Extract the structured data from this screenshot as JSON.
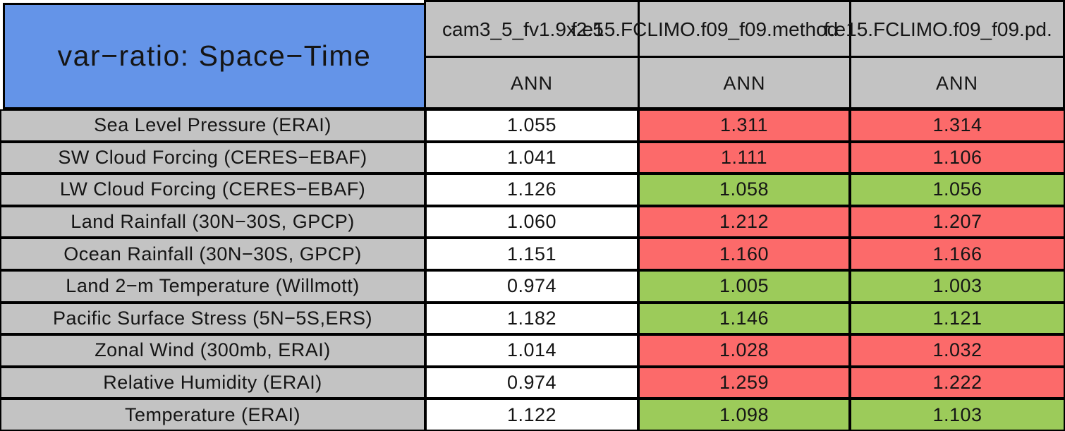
{
  "header": {
    "title": "var−ratio: Space−Time",
    "columns": [
      {
        "model": "cam3_5_fv1.9x2.5",
        "season": "ANN"
      },
      {
        "model": "f.e15.FCLIMO.f09_f09.method",
        "season": "ANN"
      },
      {
        "model": "f.e15.FCLIMO.f09_f09.pd.",
        "season": "ANN"
      }
    ]
  },
  "rows": [
    {
      "label": "Sea Level Pressure (ERAI)",
      "cells": [
        {
          "v": "1.055",
          "s": "plain"
        },
        {
          "v": "1.311",
          "s": "worse"
        },
        {
          "v": "1.314",
          "s": "worse"
        }
      ]
    },
    {
      "label": "SW Cloud Forcing (CERES−EBAF)",
      "cells": [
        {
          "v": "1.041",
          "s": "plain"
        },
        {
          "v": "1.111",
          "s": "worse"
        },
        {
          "v": "1.106",
          "s": "worse"
        }
      ]
    },
    {
      "label": "LW Cloud Forcing (CERES−EBAF)",
      "cells": [
        {
          "v": "1.126",
          "s": "plain"
        },
        {
          "v": "1.058",
          "s": "better"
        },
        {
          "v": "1.056",
          "s": "better"
        }
      ]
    },
    {
      "label": "Land Rainfall (30N−30S, GPCP)",
      "cells": [
        {
          "v": "1.060",
          "s": "plain"
        },
        {
          "v": "1.212",
          "s": "worse"
        },
        {
          "v": "1.207",
          "s": "worse"
        }
      ]
    },
    {
      "label": "Ocean Rainfall (30N−30S, GPCP)",
      "cells": [
        {
          "v": "1.151",
          "s": "plain"
        },
        {
          "v": "1.160",
          "s": "worse"
        },
        {
          "v": "1.166",
          "s": "worse"
        }
      ]
    },
    {
      "label": "Land 2−m Temperature (Willmott)",
      "cells": [
        {
          "v": "0.974",
          "s": "plain"
        },
        {
          "v": "1.005",
          "s": "better"
        },
        {
          "v": "1.003",
          "s": "better"
        }
      ]
    },
    {
      "label": "Pacific Surface Stress (5N−5S,ERS)",
      "cells": [
        {
          "v": "1.182",
          "s": "plain"
        },
        {
          "v": "1.146",
          "s": "better"
        },
        {
          "v": "1.121",
          "s": "better"
        }
      ]
    },
    {
      "label": "Zonal Wind (300mb, ERAI)",
      "cells": [
        {
          "v": "1.014",
          "s": "plain"
        },
        {
          "v": "1.028",
          "s": "worse"
        },
        {
          "v": "1.032",
          "s": "worse"
        }
      ]
    },
    {
      "label": "Relative Humidity (ERAI)",
      "cells": [
        {
          "v": "0.974",
          "s": "plain"
        },
        {
          "v": "1.259",
          "s": "worse"
        },
        {
          "v": "1.222",
          "s": "worse"
        }
      ]
    },
    {
      "label": "Temperature (ERAI)",
      "cells": [
        {
          "v": "1.122",
          "s": "plain"
        },
        {
          "v": "1.098",
          "s": "better"
        },
        {
          "v": "1.103",
          "s": "better"
        }
      ]
    }
  ],
  "colors": {
    "title_blue": "#6494e8",
    "cell_gray": "#c3c3c3",
    "worse_red": "#fc6a6a",
    "better_green": "#9ccb5a",
    "neutral_white": "#ffffff",
    "border_black": "#000000"
  },
  "chart_data": {
    "type": "table",
    "title": "var−ratio: Space−Time",
    "column_headers": [
      "cam3_5_fv1.9x2.5",
      "f.e15.FCLIMO.f09_f09.method",
      "f.e15.FCLIMO.f09_f09.pd."
    ],
    "subheaders": [
      "ANN",
      "ANN",
      "ANN"
    ],
    "row_labels": [
      "Sea Level Pressure (ERAI)",
      "SW Cloud Forcing (CERES−EBAF)",
      "LW Cloud Forcing (CERES−EBAF)",
      "Land Rainfall (30N−30S, GPCP)",
      "Ocean Rainfall (30N−30S, GPCP)",
      "Land 2−m Temperature (Willmott)",
      "Pacific Surface Stress (5N−5S,ERS)",
      "Zonal Wind (300mb, ERAI)",
      "Relative Humidity (ERAI)",
      "Temperature (ERAI)"
    ],
    "values": [
      [
        1.055,
        1.311,
        1.314
      ],
      [
        1.041,
        1.111,
        1.106
      ],
      [
        1.126,
        1.058,
        1.056
      ],
      [
        1.06,
        1.212,
        1.207
      ],
      [
        1.151,
        1.16,
        1.166
      ],
      [
        0.974,
        1.005,
        1.003
      ],
      [
        1.182,
        1.146,
        1.121
      ],
      [
        1.014,
        1.028,
        1.032
      ],
      [
        0.974,
        1.259,
        1.222
      ],
      [
        1.122,
        1.098,
        1.103
      ]
    ],
    "cell_colors": [
      [
        "white",
        "red",
        "red"
      ],
      [
        "white",
        "red",
        "red"
      ],
      [
        "white",
        "green",
        "green"
      ],
      [
        "white",
        "red",
        "red"
      ],
      [
        "white",
        "red",
        "red"
      ],
      [
        "white",
        "green",
        "green"
      ],
      [
        "white",
        "green",
        "green"
      ],
      [
        "white",
        "red",
        "red"
      ],
      [
        "white",
        "red",
        "red"
      ],
      [
        "white",
        "green",
        "green"
      ]
    ]
  }
}
